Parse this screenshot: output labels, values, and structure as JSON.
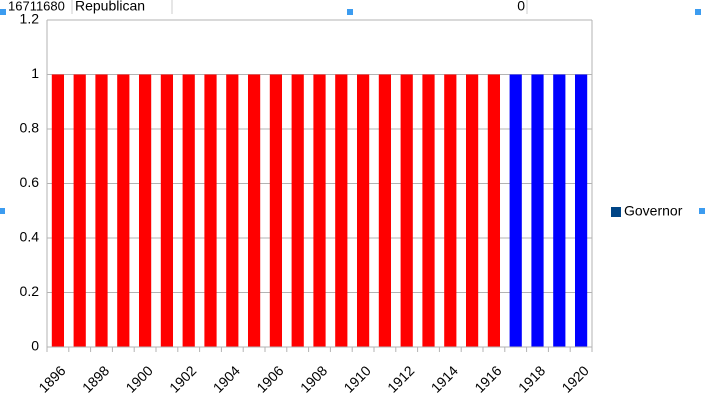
{
  "cells": [
    "16711680",
    "Republican",
    "0"
  ],
  "chart_data": {
    "type": "bar",
    "categories": [
      "1896",
      null,
      "1898",
      null,
      "1900",
      null,
      "1902",
      null,
      "1904",
      null,
      "1906",
      null,
      "1908",
      null,
      "1910",
      null,
      "1912",
      null,
      "1914",
      null,
      "1916",
      null,
      "1918",
      null,
      "1920"
    ],
    "series": [
      {
        "name": "Governor",
        "color": "#004586",
        "values": [
          1,
          1,
          1,
          1,
          1,
          1,
          1,
          1,
          1,
          1,
          1,
          1,
          1,
          1,
          1,
          1,
          1,
          1,
          1,
          1,
          1,
          1,
          1,
          1,
          1
        ],
        "bar_colors": [
          "#ff0000",
          "#ff0000",
          "#ff0000",
          "#ff0000",
          "#ff0000",
          "#ff0000",
          "#ff0000",
          "#ff0000",
          "#ff0000",
          "#ff0000",
          "#ff0000",
          "#ff0000",
          "#ff0000",
          "#ff0000",
          "#ff0000",
          "#ff0000",
          "#ff0000",
          "#ff0000",
          "#ff0000",
          "#ff0000",
          "#ff0000",
          "#0000ff",
          "#0000ff",
          "#0000ff",
          "#0000ff"
        ]
      }
    ],
    "ylim": [
      0,
      1.2
    ],
    "yticks": [
      0,
      0.2,
      0.4,
      0.6,
      0.8,
      1,
      1.2
    ],
    "grid": true,
    "legend": "right"
  }
}
